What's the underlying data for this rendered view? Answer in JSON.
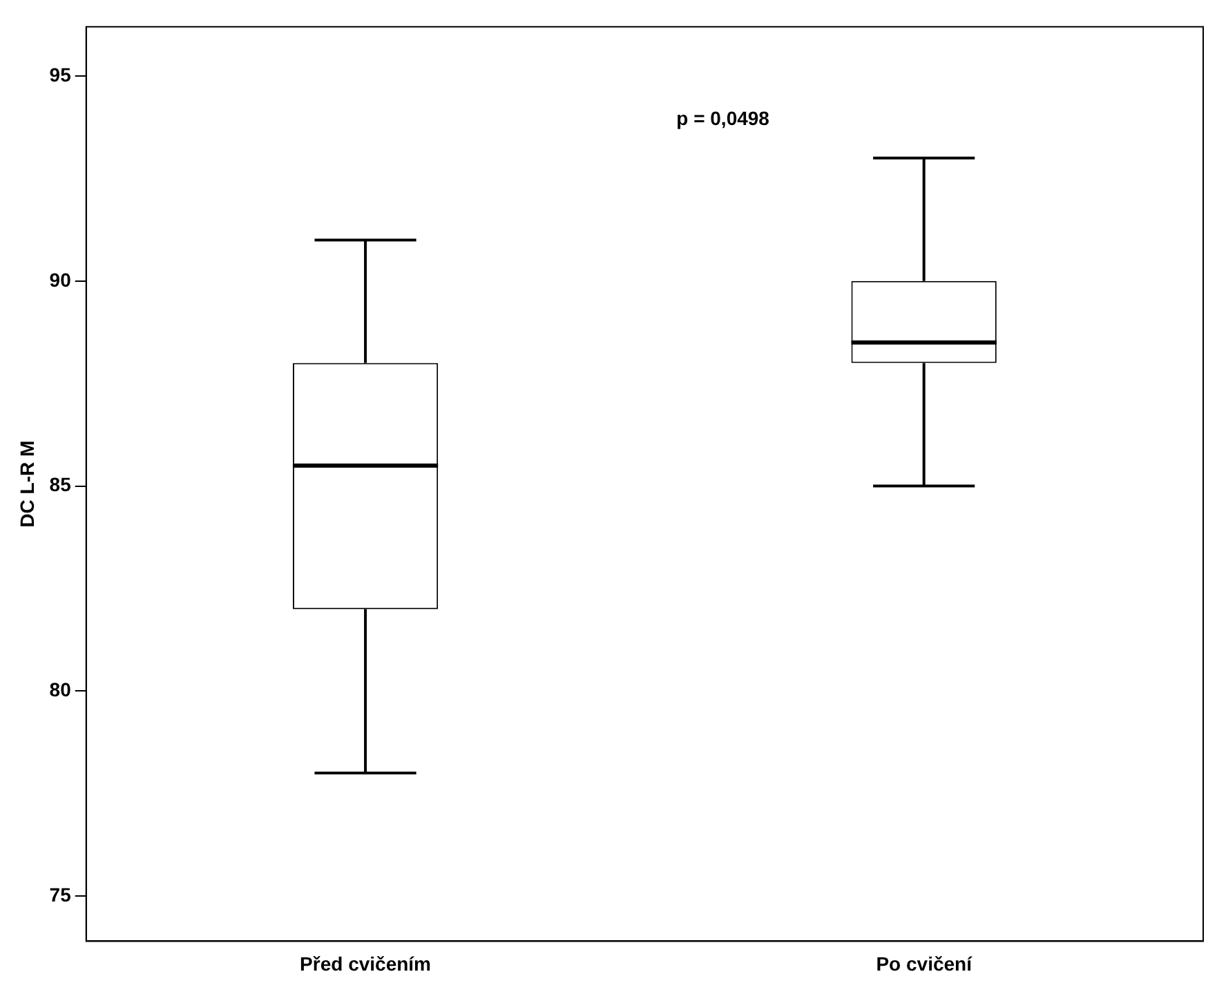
{
  "chart_data": {
    "type": "box",
    "ylabel": "DC L-R M",
    "categories": [
      "Před cvičením",
      "Po cvičení"
    ],
    "boxes": [
      {
        "low": 78,
        "q1": 82,
        "median": 85.5,
        "q3": 88,
        "high": 91
      },
      {
        "low": 85,
        "q1": 88,
        "median": 88.5,
        "q3": 90,
        "high": 93
      }
    ],
    "ylim": [
      73.9,
      96.2
    ],
    "yticks": [
      75,
      80,
      85,
      90,
      95
    ],
    "grid": false,
    "legend": false,
    "annotations": [
      "p = 0,0498"
    ]
  }
}
